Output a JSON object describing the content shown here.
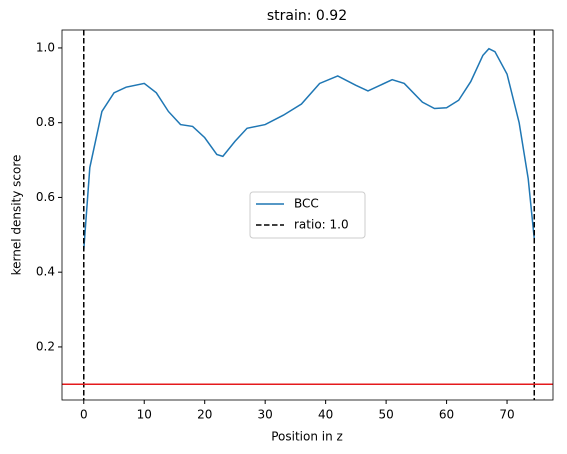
{
  "chart_data": {
    "type": "line",
    "title": "strain: 0.92",
    "xlabel": "Position in z",
    "ylabel": "kernel density score",
    "series": [
      {
        "name": "BCC",
        "color": "#1f77b4",
        "x": [
          0,
          1,
          3,
          5,
          7,
          10,
          12,
          14,
          16,
          18,
          20,
          22,
          23,
          25,
          27,
          30,
          33,
          36,
          39,
          42,
          45,
          47,
          49,
          51,
          53,
          56,
          58,
          60,
          62,
          64,
          66,
          67,
          68,
          70,
          72,
          73.5,
          74.5
        ],
        "values": [
          0.46,
          0.68,
          0.83,
          0.88,
          0.895,
          0.905,
          0.88,
          0.83,
          0.795,
          0.79,
          0.76,
          0.715,
          0.71,
          0.75,
          0.785,
          0.795,
          0.82,
          0.85,
          0.905,
          0.925,
          0.9,
          0.885,
          0.9,
          0.915,
          0.905,
          0.855,
          0.838,
          0.84,
          0.86,
          0.91,
          0.98,
          0.998,
          0.99,
          0.93,
          0.8,
          0.65,
          0.49
        ]
      }
    ],
    "vlines": {
      "name": "ratio: 1.0",
      "color": "#000000",
      "x": [
        0,
        74.5
      ]
    },
    "hline": {
      "y": 0.1,
      "color": "#e41a1c"
    },
    "xlim": [
      -3.6,
      77.6
    ],
    "ylim": [
      0.058,
      1.048
    ],
    "xticks": [
      0,
      10,
      20,
      30,
      40,
      50,
      60,
      70
    ],
    "yticks": [
      0.2,
      0.4,
      0.6,
      0.8,
      {
        "value": 1,
        "label": "1.0"
      }
    ],
    "legend": "center"
  }
}
